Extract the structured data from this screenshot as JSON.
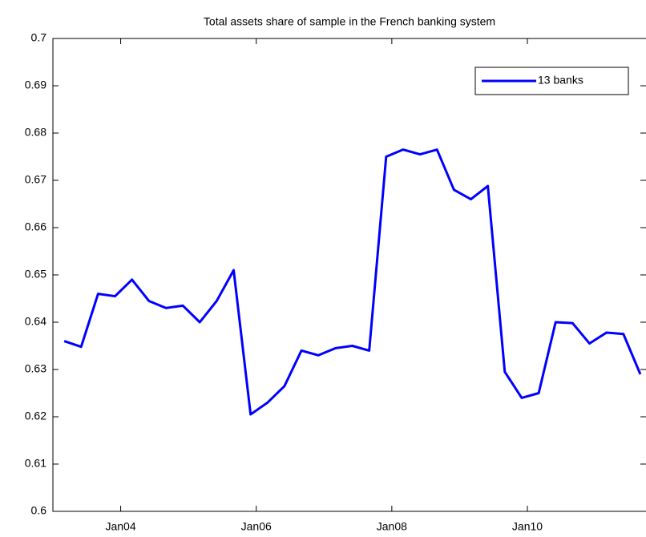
{
  "chart_data": {
    "type": "line",
    "title": "Total assets share of sample in the French banking system",
    "x": [
      "2003-03",
      "2003-06",
      "2003-09",
      "2003-12",
      "2004-03",
      "2004-06",
      "2004-09",
      "2004-12",
      "2005-03",
      "2005-06",
      "2005-09",
      "2005-12",
      "2006-03",
      "2006-06",
      "2006-09",
      "2006-12",
      "2007-03",
      "2007-06",
      "2007-09",
      "2007-12",
      "2008-03",
      "2008-06",
      "2008-09",
      "2008-12",
      "2009-03",
      "2009-06",
      "2009-09",
      "2009-12",
      "2010-03",
      "2010-06",
      "2010-09",
      "2010-12",
      "2011-03",
      "2011-06",
      "2011-09"
    ],
    "series": [
      {
        "name": "13 banks",
        "color": "#0000ff",
        "values": [
          0.636,
          0.6348,
          0.646,
          0.6455,
          0.649,
          0.6445,
          0.643,
          0.6435,
          0.64,
          0.6445,
          0.651,
          0.6205,
          0.623,
          0.6265,
          0.634,
          0.633,
          0.6345,
          0.635,
          0.634,
          0.675,
          0.6765,
          0.6755,
          0.6765,
          0.668,
          0.666,
          0.6688,
          0.6295,
          0.624,
          0.625,
          0.64,
          0.6398,
          0.6355,
          0.6378,
          0.6375,
          0.629
        ]
      }
    ],
    "xlim": [
      "2003-01",
      "2011-10"
    ],
    "xticks": [
      {
        "value": "2004-01",
        "label": "Jan04"
      },
      {
        "value": "2006-01",
        "label": "Jan06"
      },
      {
        "value": "2008-01",
        "label": "Jan08"
      },
      {
        "value": "2010-01",
        "label": "Jan10"
      }
    ],
    "ylim": [
      0.6,
      0.7
    ],
    "yticks": [
      0.6,
      0.61,
      0.62,
      0.63,
      0.64,
      0.65,
      0.66,
      0.67,
      0.68,
      0.69,
      0.7
    ],
    "grid": false,
    "legend": "northeast"
  }
}
